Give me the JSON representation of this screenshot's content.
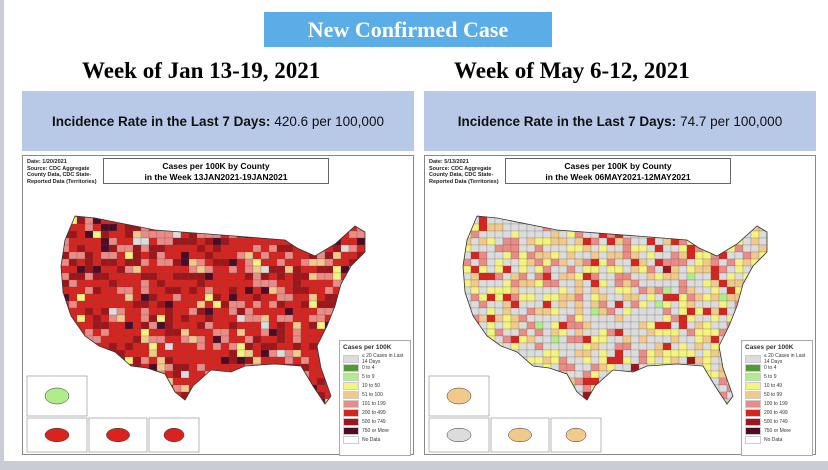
{
  "title": "New Confirmed Case",
  "panels": [
    {
      "week": "Week of Jan 13-19, 2021",
      "incidence_label": "Incidence Rate in the Last 7 Days:",
      "incidence_value": "420.6 per 100,000",
      "map_meta": [
        "Date: 1/20/2021",
        "Source: CDC Aggregate",
        "County Data, CDC State-",
        "Reported Data (Territories)"
      ],
      "map_title": [
        "Cases per 100K by County",
        "in the Week 13JAN2021-19JAN2021"
      ],
      "legend_title": "Cases per 100K",
      "legend": [
        {
          "label": "≤ 20 Cases in Last 14 Days",
          "color": "#dcdcdc"
        },
        {
          "label": "0 to 4",
          "color": "#4f9e2f"
        },
        {
          "label": "5 to 9",
          "color": "#b0ec8a"
        },
        {
          "label": "10 to 50",
          "color": "#f5f37f"
        },
        {
          "label": "51 to 100",
          "color": "#f1c98a"
        },
        {
          "label": "101 to 199",
          "color": "#ea8b86"
        },
        {
          "label": "200 to 499",
          "color": "#d9231f"
        },
        {
          "label": "500 to 749",
          "color": "#a0151a"
        },
        {
          "label": "750 or More",
          "color": "#4e0a26"
        },
        {
          "label": "No Data",
          "color": "#ffffff"
        }
      ]
    },
    {
      "week": "Week of May 6-12, 2021",
      "incidence_label": "Incidence Rate in the Last 7 Days:",
      "incidence_value": "74.7 per 100,000",
      "map_meta": [
        "Date: 5/13/2021",
        "Source: CDC Aggregate",
        "County Data, CDC State-",
        "Reported Data (Territories)"
      ],
      "map_title": [
        "Cases per 100K by County",
        "in the Week 06MAY2021-12MAY2021"
      ],
      "legend_title": "Cases per 100K",
      "legend": [
        {
          "label": "≤ 20 Cases in Last 14 Days",
          "color": "#dcdcdc"
        },
        {
          "label": "0 to 4",
          "color": "#4f9e2f"
        },
        {
          "label": "5 to 9",
          "color": "#b0ec8a"
        },
        {
          "label": "10 to 49",
          "color": "#f5f37f"
        },
        {
          "label": "50 to 99",
          "color": "#f1c98a"
        },
        {
          "label": "100 to 199",
          "color": "#ea8b86"
        },
        {
          "label": "200 to 499",
          "color": "#d9231f"
        },
        {
          "label": "500 to 749",
          "color": "#a0151a"
        },
        {
          "label": "750 or More",
          "color": "#4e0a26"
        },
        {
          "label": "No Data",
          "color": "#ffffff"
        }
      ]
    }
  ]
}
